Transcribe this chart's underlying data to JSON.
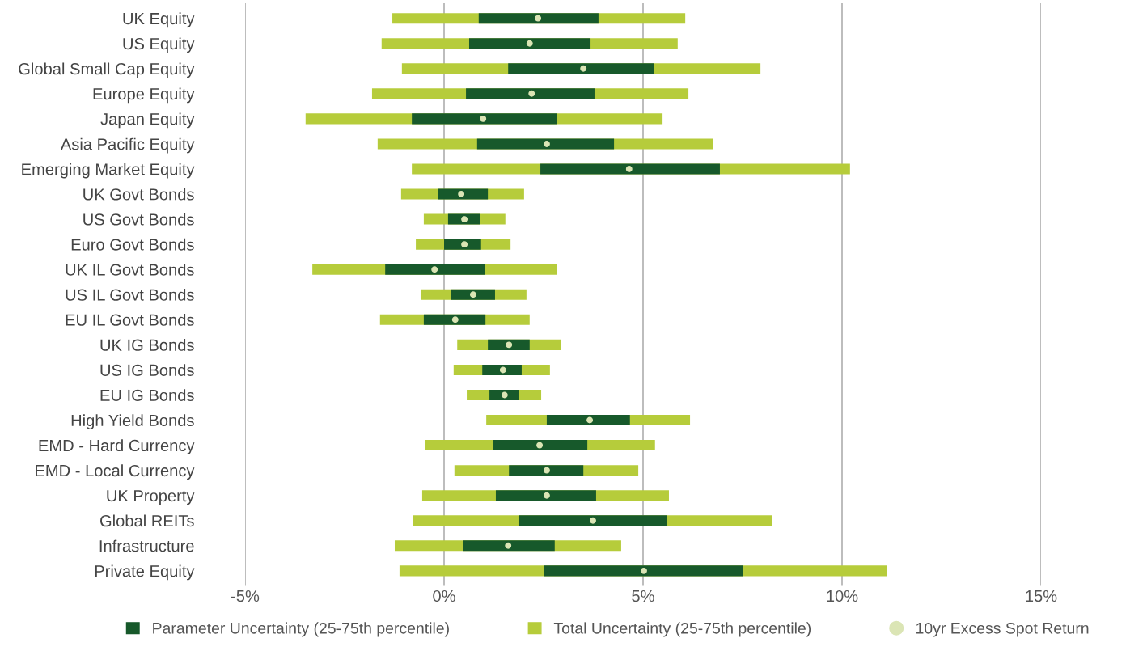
{
  "chart_data": {
    "type": "bar",
    "orientation": "horizontal",
    "categories": [
      "UK Equity",
      "US Equity",
      "Global Small Cap Equity",
      "Europe Equity",
      "Japan Equity",
      "Asia Pacific Equity",
      "Emerging Market Equity",
      "UK Govt Bonds",
      "US Govt Bonds",
      "Euro Govt Bonds",
      "UK IL Govt Bonds",
      "US IL Govt Bonds",
      "EU IL Govt Bonds",
      "UK IG Bonds",
      "US IG Bonds",
      "EU IG Bonds",
      "High Yield Bonds",
      "EMD - Hard Currency",
      "EMD - Local Currency",
      "UK Property",
      "Global REITs",
      "Infrastructure",
      "Private Equity"
    ],
    "series": [
      {
        "name": "Parameter Uncertainty (25-75th percentile)",
        "color": "#17592b",
        "base": [
          0.87,
          0.63,
          1.61,
          0.55,
          -0.81,
          0.83,
          2.42,
          -0.16,
          0.1,
          0.0,
          -1.48,
          0.18,
          -0.51,
          1.1,
          0.96,
          1.14,
          2.58,
          1.24,
          1.63,
          1.3,
          1.89,
          0.47,
          2.52
        ],
        "values": [
          3.01,
          3.05,
          3.67,
          3.23,
          3.64,
          3.44,
          4.51,
          1.26,
          0.81,
          0.93,
          2.5,
          1.1,
          1.55,
          1.05,
          0.99,
          0.75,
          2.09,
          2.36,
          1.87,
          2.52,
          3.7,
          2.31,
          4.98
        ]
      },
      {
        "name": "Total Uncertainty (25-75th percentile)",
        "color": "#b6cc3b",
        "base": [
          -1.3,
          -1.57,
          -1.06,
          -1.81,
          -3.48,
          -1.67,
          -0.81,
          -1.08,
          -0.51,
          -0.71,
          -3.31,
          -0.59,
          -1.61,
          0.33,
          0.24,
          0.57,
          1.06,
          -0.47,
          0.26,
          -0.55,
          -0.79,
          -1.24,
          -1.12
        ],
        "values": [
          7.36,
          7.44,
          9.01,
          7.95,
          8.97,
          8.42,
          11.01,
          3.09,
          2.05,
          2.38,
          6.14,
          2.66,
          3.76,
          2.6,
          2.42,
          1.87,
          5.12,
          5.77,
          4.62,
          6.2,
          9.04,
          5.69,
          12.24
        ]
      },
      {
        "name": "10yr Excess Spot Return",
        "type": "scatter",
        "color": "#dbe5b5",
        "values": [
          2.36,
          2.15,
          3.5,
          2.2,
          0.98,
          2.58,
          4.65,
          0.43,
          0.51,
          0.51,
          -0.24,
          0.73,
          0.28,
          1.63,
          1.48,
          1.52,
          3.66,
          2.4,
          2.58,
          2.58,
          3.74,
          1.61,
          5.02
        ]
      }
    ],
    "xlim": [
      -5,
      15
    ],
    "xticks": [
      {
        "value": -5,
        "label": "-5%"
      },
      {
        "value": 0,
        "label": "0%"
      },
      {
        "value": 5,
        "label": "5%"
      },
      {
        "value": 10,
        "label": "10%"
      },
      {
        "value": 15,
        "label": "15%"
      }
    ],
    "grid": "x",
    "legend": "bottom",
    "marker": "circle"
  }
}
